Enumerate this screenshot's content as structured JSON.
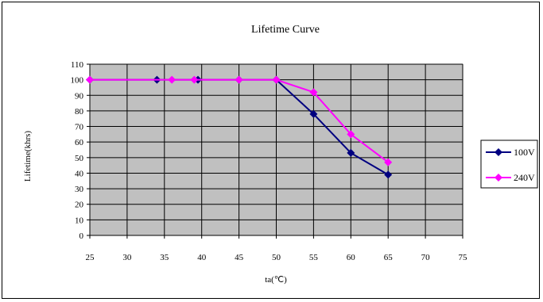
{
  "chart_data": {
    "type": "line",
    "title": "Lifetime Curve",
    "xlabel": "ta(℃)",
    "ylabel": "Lifetime(khrs)",
    "xlim": [
      25,
      75
    ],
    "ylim": [
      0,
      110
    ],
    "xticks": [
      25,
      30,
      35,
      40,
      45,
      50,
      55,
      60,
      65,
      70,
      75
    ],
    "yticks": [
      0,
      10,
      20,
      30,
      40,
      50,
      60,
      70,
      80,
      90,
      100,
      110
    ],
    "grid": true,
    "legend_position": "right",
    "plot_background": "#c0c0c0",
    "series": [
      {
        "name": "100V",
        "color": "#000080",
        "marker": "diamond",
        "x": [
          25,
          34,
          39.5,
          45,
          50,
          55,
          60,
          65
        ],
        "y": [
          100,
          100,
          100,
          100,
          100,
          78,
          53,
          39
        ]
      },
      {
        "name": "240V",
        "color": "#ff00ff",
        "marker": "diamond",
        "x": [
          25,
          36,
          39,
          45,
          50,
          55,
          60,
          65
        ],
        "y": [
          100,
          100,
          100,
          100,
          100,
          92,
          65,
          47
        ]
      }
    ]
  }
}
